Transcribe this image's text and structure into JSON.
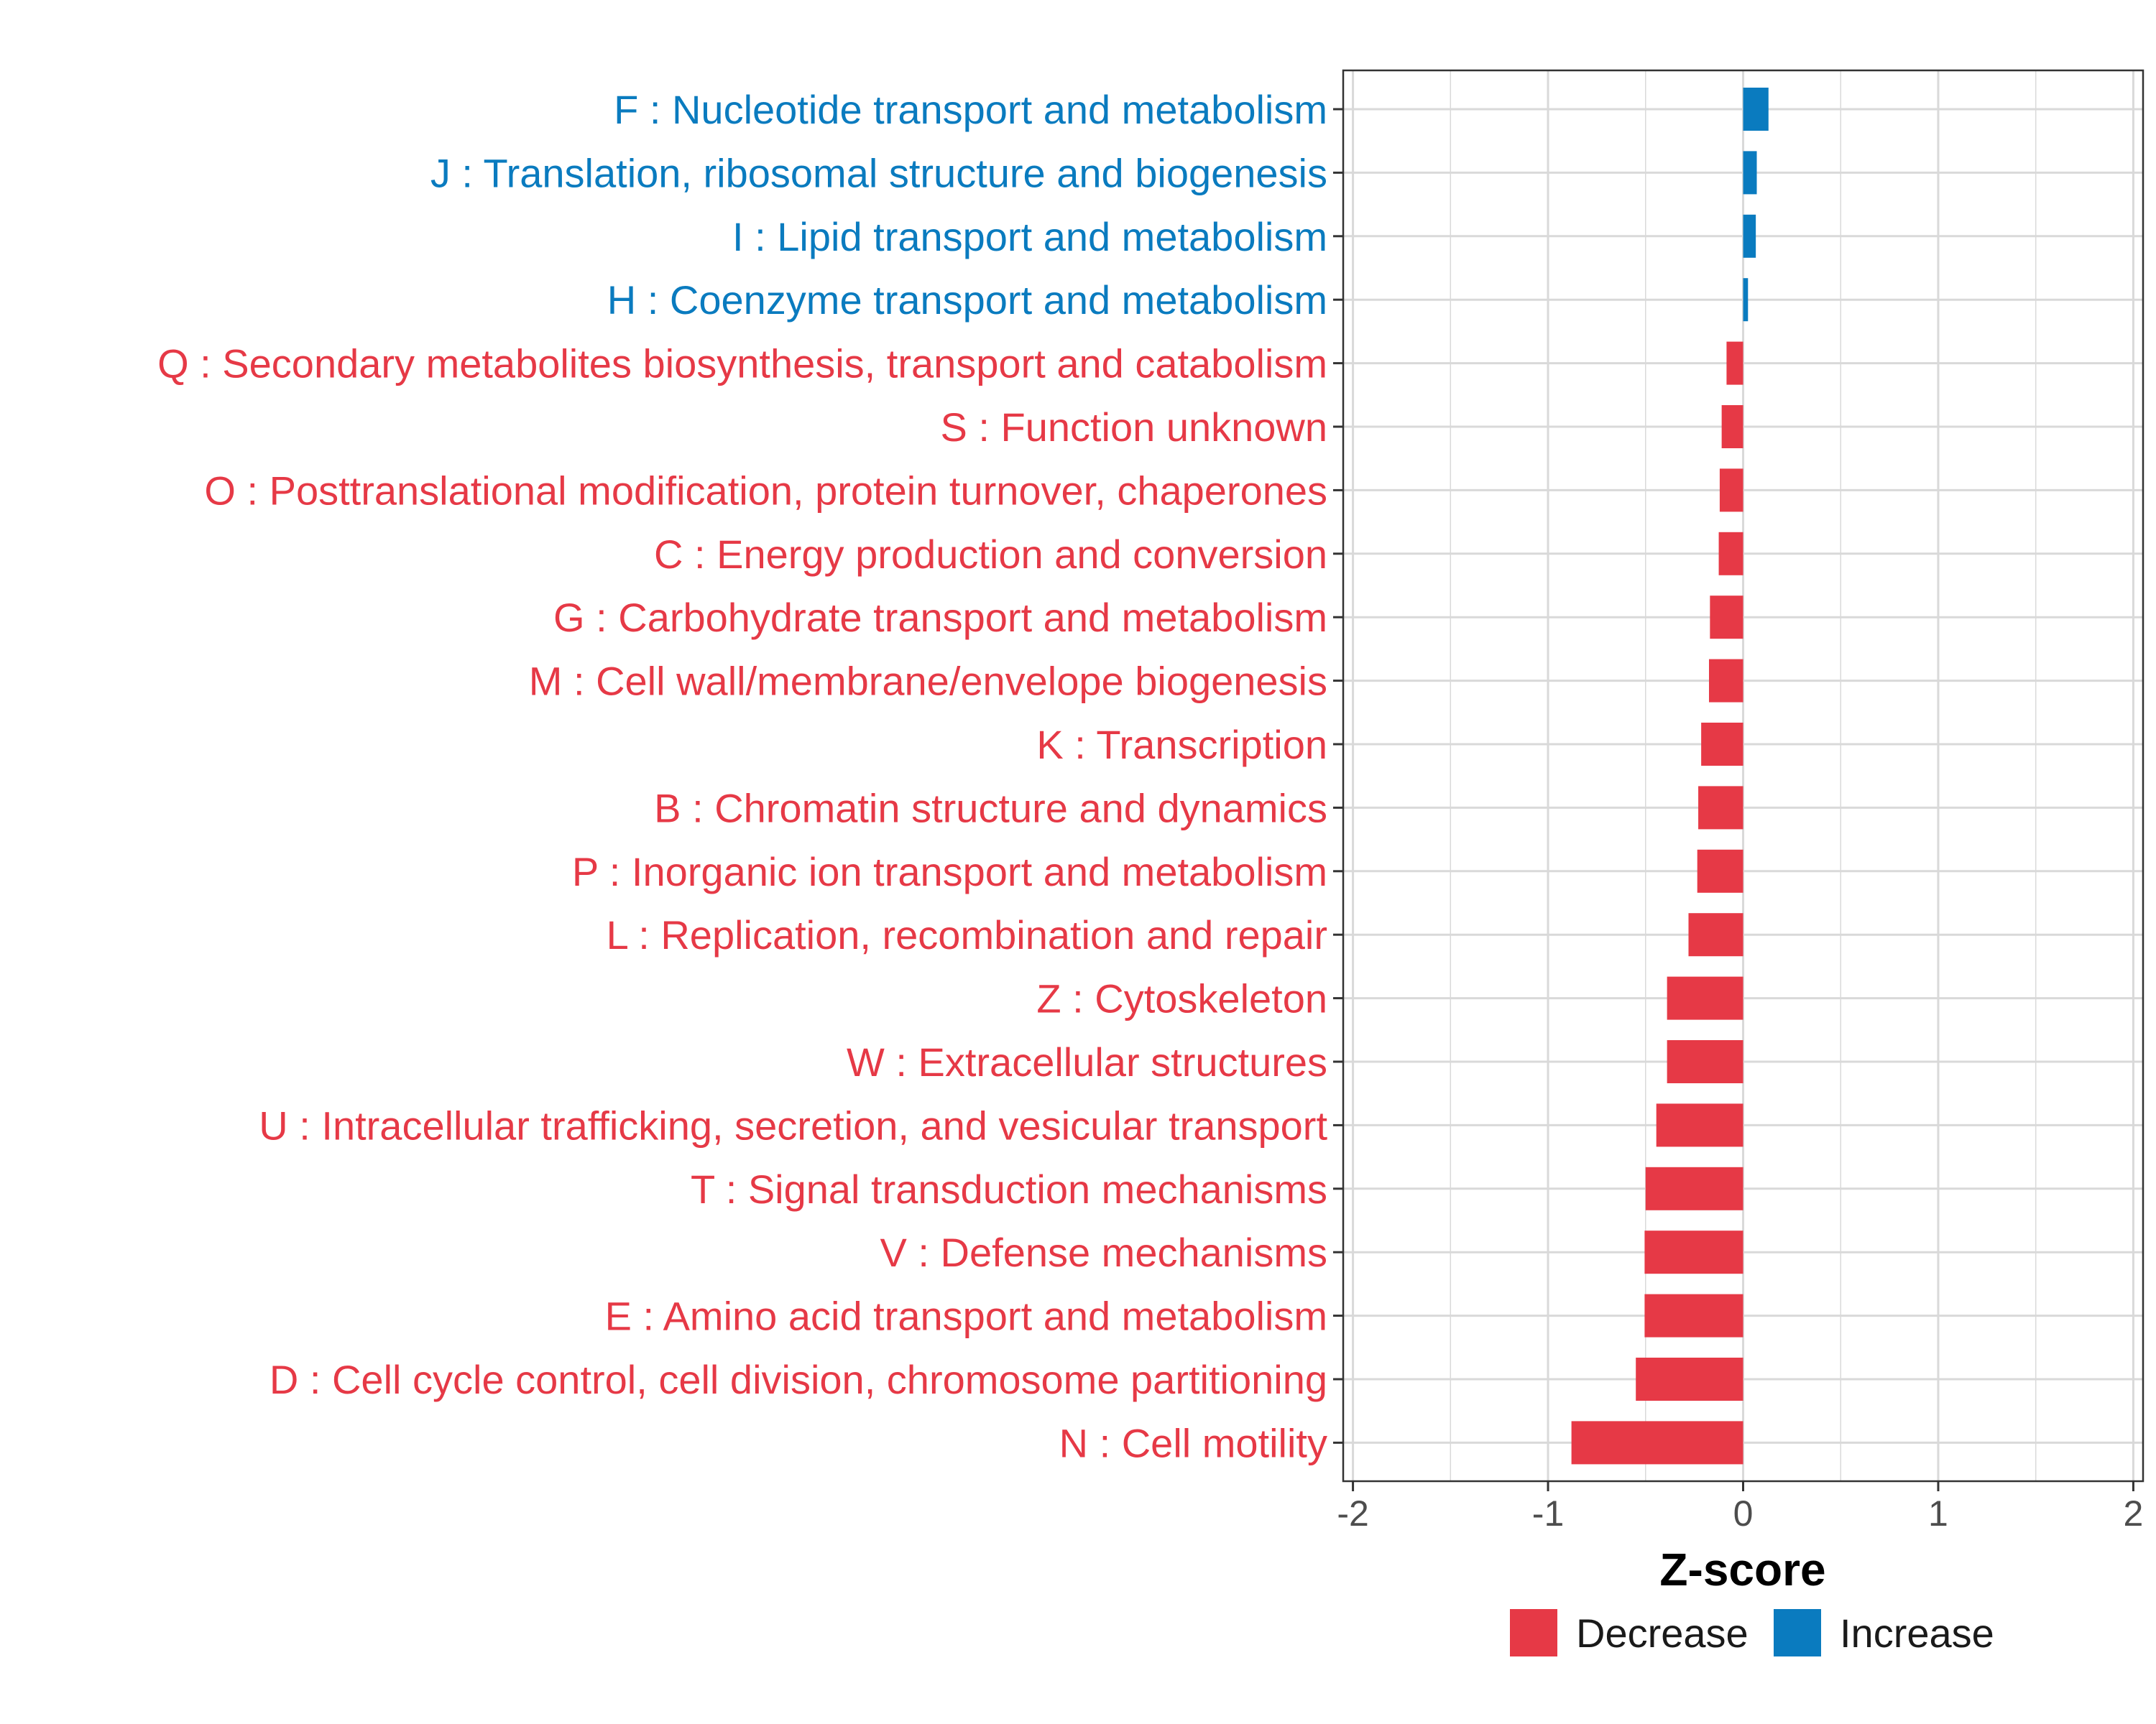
{
  "chart_data": {
    "type": "bar",
    "orientation": "horizontal",
    "xlabel": "Z-score",
    "ylabel": "",
    "xlim": [
      -2.05,
      2.05
    ],
    "xticks": [
      -2,
      -1,
      0,
      1,
      2
    ],
    "xtick_labels": [
      "-2",
      "-1",
      "0",
      "1",
      "2"
    ],
    "grid": true,
    "legend_position": "bottom",
    "legend": [
      {
        "key": "decrease",
        "label": "Decrease",
        "color": "#E63946"
      },
      {
        "key": "increase",
        "label": "Increase",
        "color": "#0A7BBF"
      }
    ],
    "categories": [
      "F : Nucleotide transport and metabolism",
      "J : Translation, ribosomal structure and biogenesis",
      "I : Lipid transport and metabolism",
      "H : Coenzyme transport and metabolism",
      "Q : Secondary metabolites biosynthesis, transport and catabolism",
      "S : Function unknown",
      "O : Posttranslational modification, protein turnover, chaperones",
      "C : Energy production and conversion",
      "G : Carbohydrate transport and metabolism",
      "M : Cell wall/membrane/envelope biogenesis",
      "K : Transcription",
      "B : Chromatin structure and dynamics",
      "P : Inorganic ion transport and metabolism",
      "L : Replication, recombination and repair",
      "Z : Cytoskeleton",
      "W : Extracellular structures",
      "U : Intracellular trafficking, secretion, and vesicular transport",
      "T : Signal transduction mechanisms",
      "V : Defense mechanisms",
      "E : Amino acid transport and metabolism",
      "D : Cell cycle control, cell division, chromosome partitioning",
      "N : Cell motility"
    ],
    "values": [
      0.13,
      0.07,
      0.065,
      0.025,
      -0.085,
      -0.11,
      -0.12,
      -0.125,
      -0.17,
      -0.175,
      -0.215,
      -0.23,
      -0.235,
      -0.28,
      -0.39,
      -0.39,
      -0.445,
      -0.5,
      -0.505,
      -0.505,
      -0.55,
      -0.88
    ],
    "direction": [
      "increase",
      "increase",
      "increase",
      "increase",
      "decrease",
      "decrease",
      "decrease",
      "decrease",
      "decrease",
      "decrease",
      "decrease",
      "decrease",
      "decrease",
      "decrease",
      "decrease",
      "decrease",
      "decrease",
      "decrease",
      "decrease",
      "decrease",
      "decrease",
      "decrease"
    ]
  }
}
